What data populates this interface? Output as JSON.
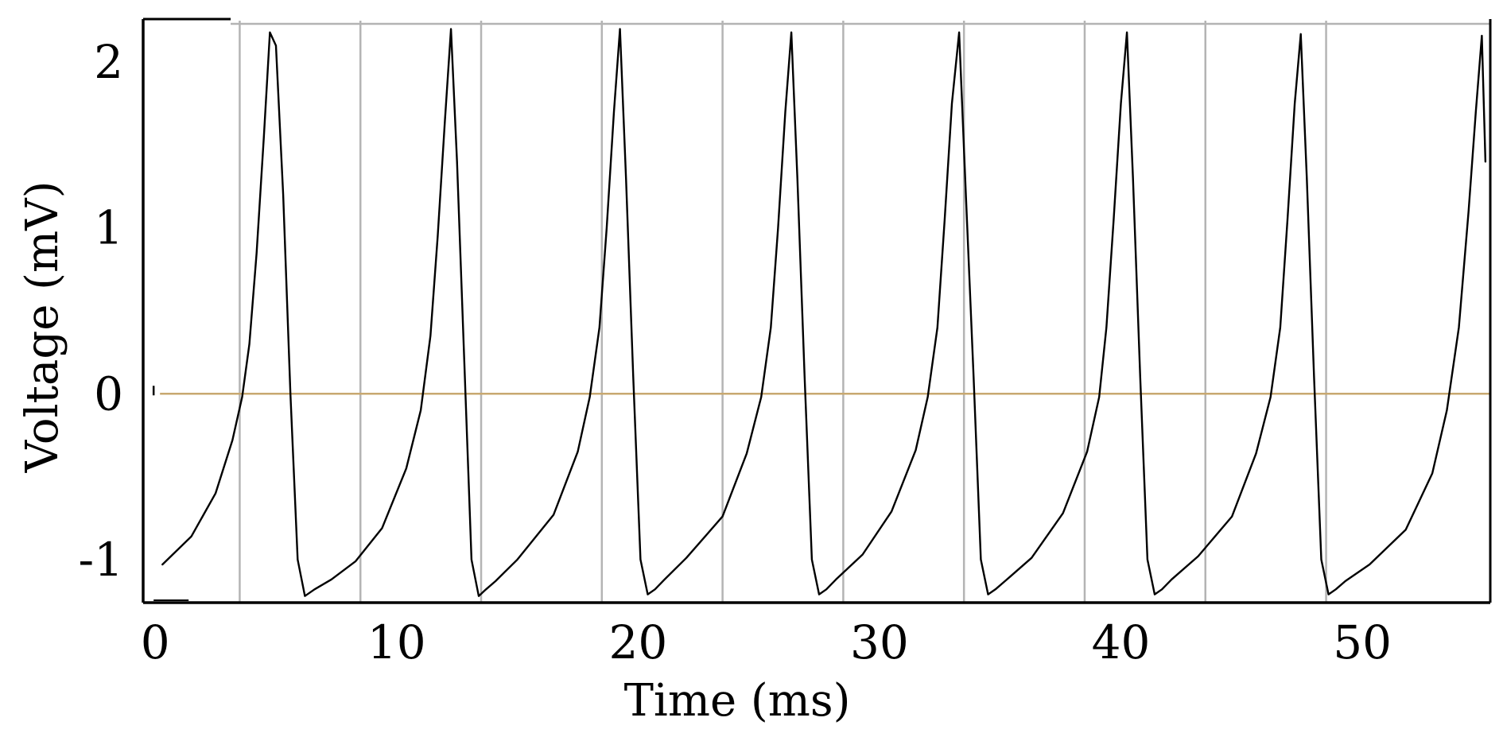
{
  "chart_data": {
    "type": "line",
    "title": "",
    "xlabel": "Time (ms)",
    "ylabel": "Voltage (mV)",
    "xlim": [
      -0.5,
      55.3
    ],
    "ylim": [
      -1.26,
      2.26
    ],
    "x_ticks": [
      0,
      10,
      20,
      30,
      40,
      50
    ],
    "y_ticks": [
      -1,
      0,
      1,
      2
    ],
    "x_tick_labels": [
      "0",
      "10",
      "20",
      "30",
      "40",
      "50"
    ],
    "y_tick_labels": [
      "-1",
      "0",
      "1",
      "2"
    ],
    "grid": {
      "vertical": true,
      "horizontal": false
    },
    "vertical_gridlines_x": [
      3.5,
      8.5,
      13.5,
      18.5,
      23.5,
      28.5,
      33.5,
      38.5,
      43.5,
      48.5
    ],
    "reference_line": {
      "y": 0,
      "color": "#c8a870"
    },
    "legend": "none",
    "series": [
      {
        "color": "#000000",
        "x": [
          0.3,
          1.5,
          2.5,
          3.2,
          3.6,
          3.9,
          4.2,
          4.5,
          4.75,
          5.0,
          5.3,
          5.6,
          5.9,
          6.2,
          6.6,
          7.3,
          8.3,
          9.4,
          10.4,
          11.0,
          11.4,
          11.7,
          12.0,
          12.25,
          12.5,
          12.8,
          13.1,
          13.4,
          13.7,
          14.1,
          15.0,
          16.5,
          17.5,
          18.0,
          18.4,
          18.7,
          19.0,
          19.25,
          19.5,
          19.8,
          20.1,
          20.4,
          20.7,
          21.1,
          22.0,
          23.5,
          24.5,
          25.1,
          25.5,
          25.8,
          26.1,
          26.35,
          26.6,
          26.9,
          27.2,
          27.5,
          27.8,
          28.2,
          29.3,
          30.5,
          31.5,
          32.0,
          32.4,
          32.7,
          33.0,
          33.3,
          33.55,
          33.9,
          34.2,
          34.5,
          34.8,
          35.2,
          36.3,
          37.6,
          38.6,
          39.1,
          39.4,
          39.7,
          40.0,
          40.25,
          40.5,
          40.8,
          41.1,
          41.4,
          41.7,
          42.1,
          43.2,
          44.6,
          45.6,
          46.2,
          46.6,
          46.9,
          47.2,
          47.45,
          47.7,
          48.0,
          48.3,
          48.6,
          48.9,
          49.3,
          50.3,
          51.8,
          52.9,
          53.5,
          54.0,
          54.4,
          54.7,
          54.95,
          55.1
        ],
        "y": [
          -1.03,
          -0.86,
          -0.6,
          -0.28,
          -0.02,
          0.3,
          0.85,
          1.55,
          2.18,
          2.1,
          1.2,
          0.0,
          -1.0,
          -1.22,
          -1.18,
          -1.12,
          -1.01,
          -0.81,
          -0.45,
          -0.1,
          0.35,
          0.95,
          1.65,
          2.2,
          1.4,
          0.2,
          -1.0,
          -1.22,
          -1.18,
          -1.13,
          -1.0,
          -0.73,
          -0.35,
          -0.02,
          0.4,
          1.0,
          1.7,
          2.2,
          1.3,
          0.1,
          -1.0,
          -1.21,
          -1.18,
          -1.12,
          -0.99,
          -0.74,
          -0.36,
          -0.02,
          0.4,
          1.0,
          1.7,
          2.18,
          1.3,
          0.1,
          -1.0,
          -1.21,
          -1.18,
          -1.12,
          -0.97,
          -0.71,
          -0.34,
          -0.02,
          0.4,
          1.05,
          1.75,
          2.18,
          1.3,
          0.1,
          -1.0,
          -1.21,
          -1.18,
          -1.13,
          -0.99,
          -0.72,
          -0.35,
          -0.02,
          0.4,
          1.05,
          1.75,
          2.18,
          1.3,
          0.1,
          -1.0,
          -1.21,
          -1.18,
          -1.12,
          -0.98,
          -0.74,
          -0.36,
          -0.02,
          0.4,
          1.05,
          1.75,
          2.17,
          1.3,
          0.1,
          -1.0,
          -1.21,
          -1.18,
          -1.13,
          -1.03,
          -0.82,
          -0.48,
          -0.1,
          0.4,
          1.1,
          1.7,
          2.16,
          1.4
        ]
      }
    ]
  }
}
